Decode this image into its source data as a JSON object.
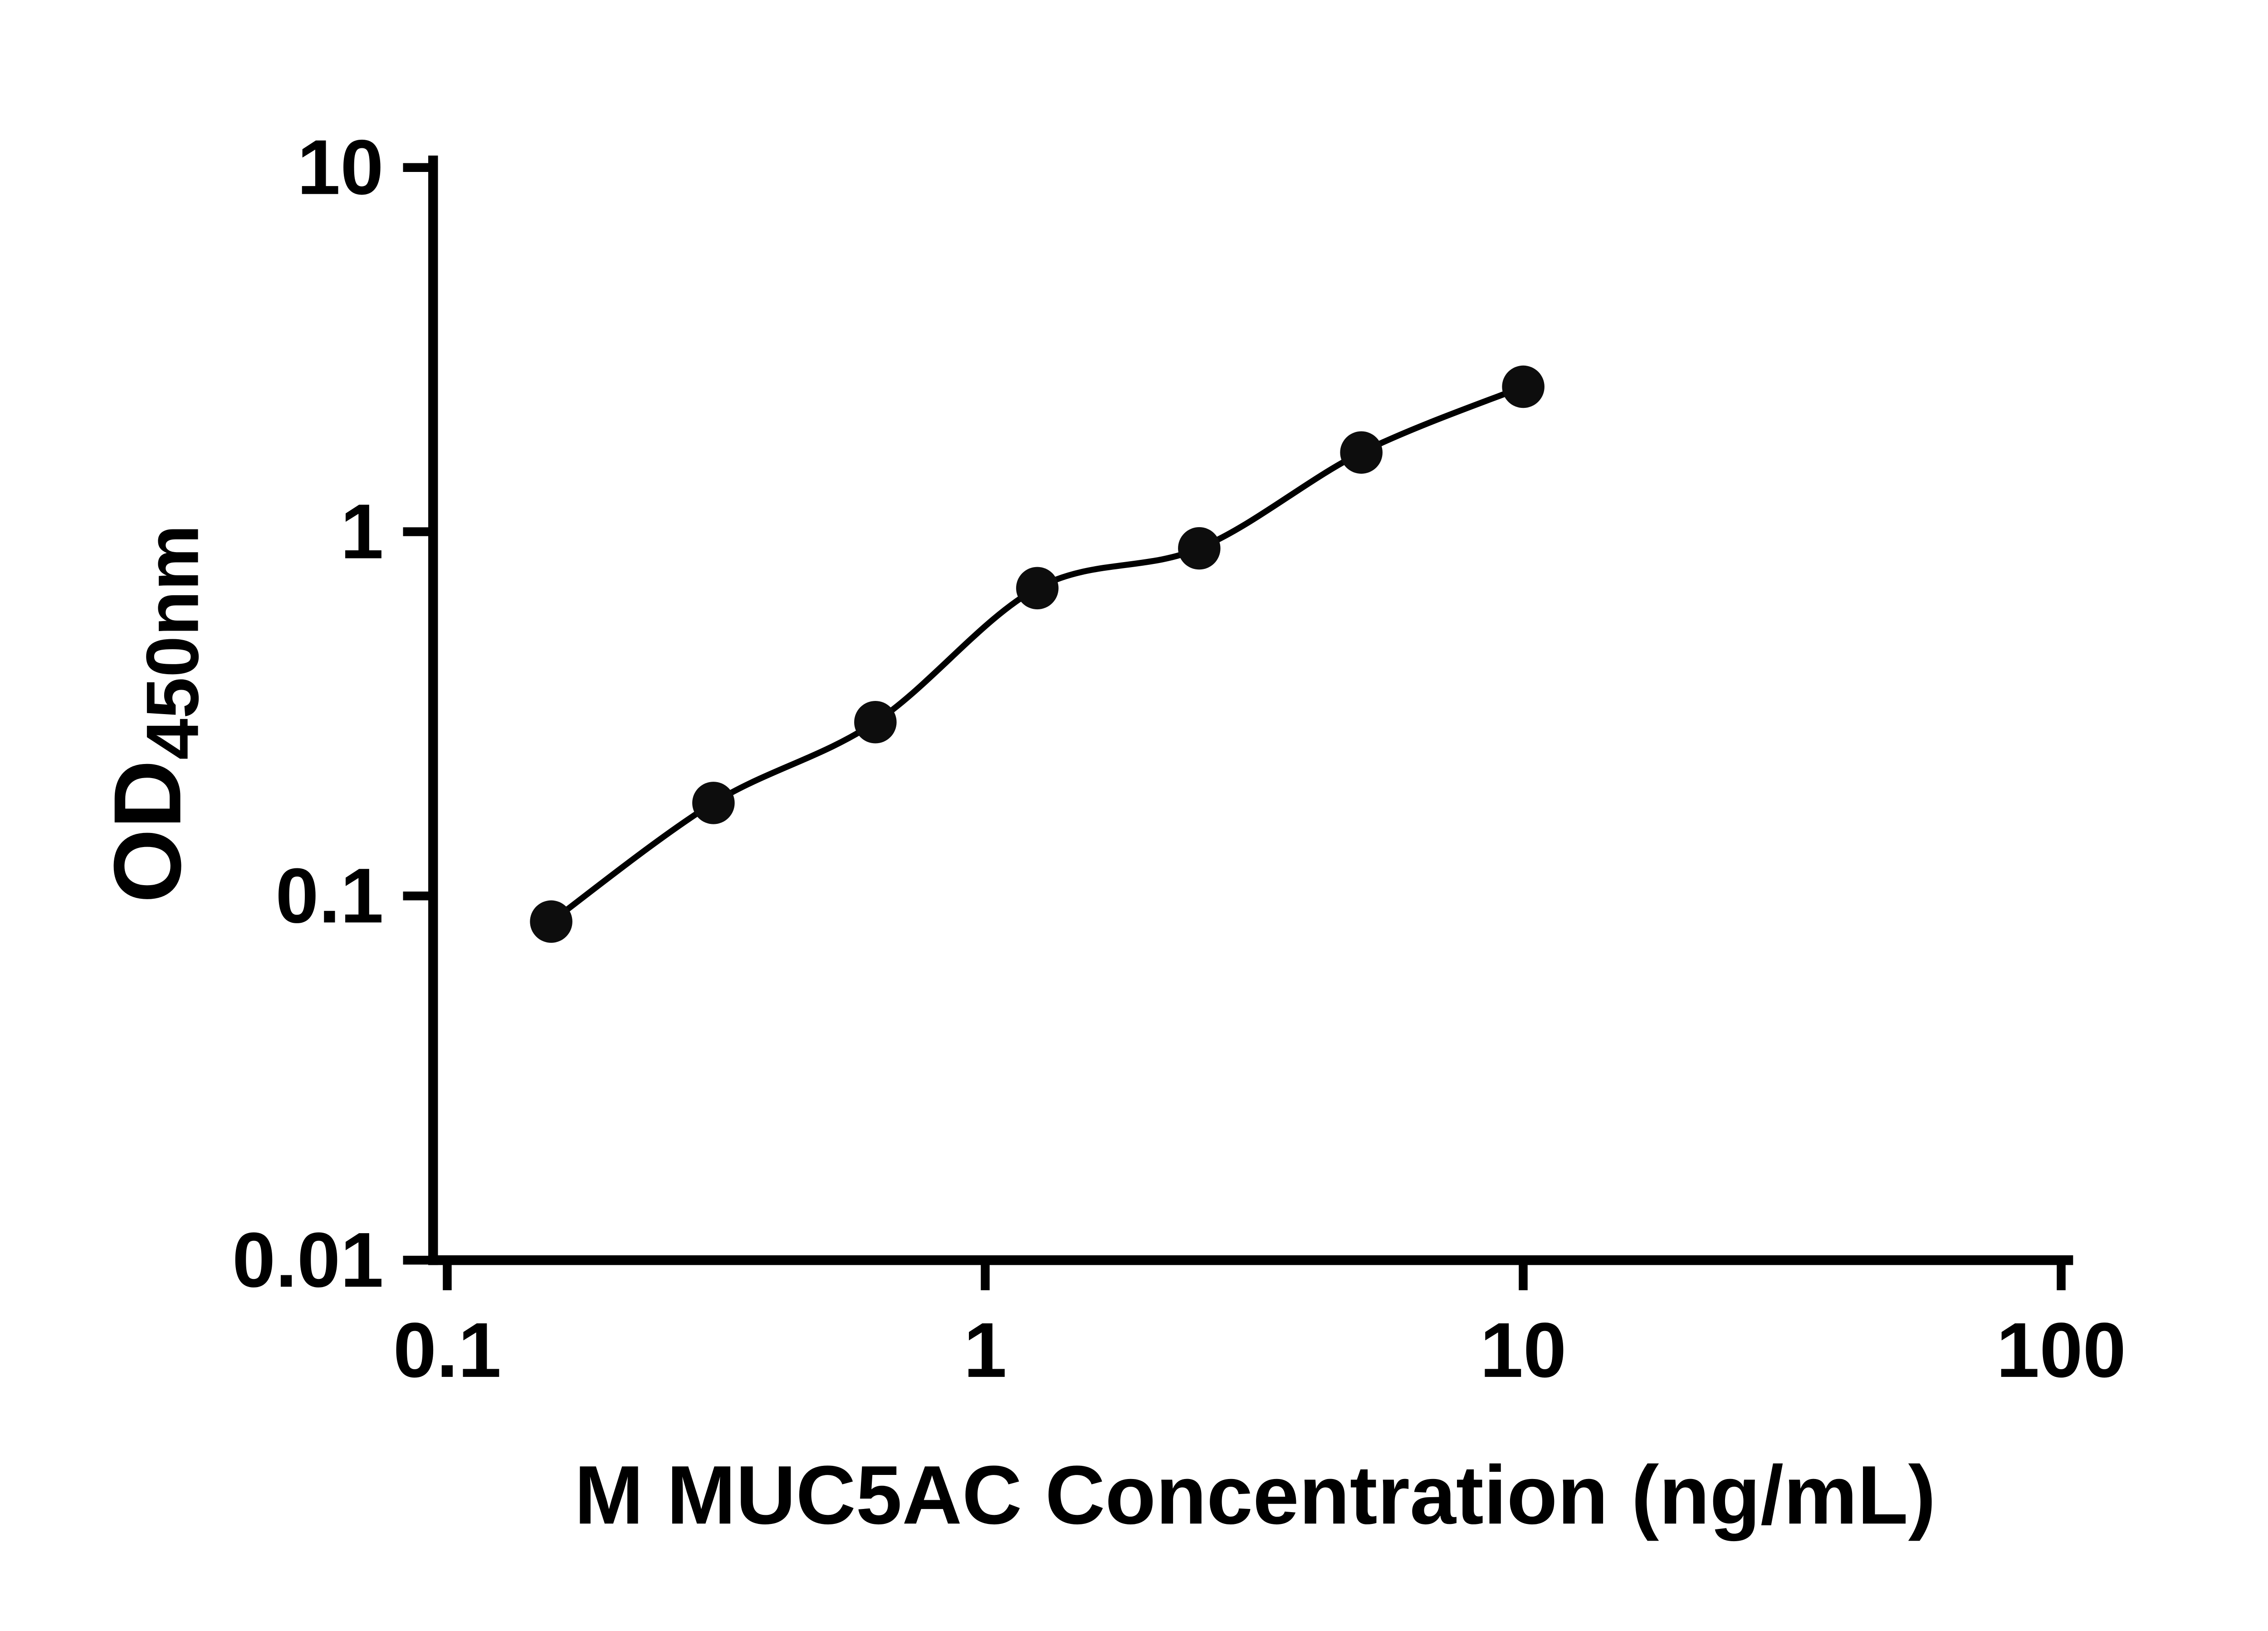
{
  "page": {
    "background": "#ffffff",
    "foreground": "#000000"
  },
  "chart_data": {
    "type": "scatter",
    "title": "",
    "xlabel": "M MUC5AC Concentration (ng/mL)",
    "ylabel": "OD",
    "ylabel_subscript": "450nm",
    "x_scale": "log",
    "y_scale": "log",
    "xlim": [
      0.1,
      100
    ],
    "ylim": [
      0.01,
      10
    ],
    "x_ticks": [
      0.1,
      1,
      10,
      100
    ],
    "x_tick_labels": [
      "0.1",
      "1",
      "10",
      "100"
    ],
    "y_ticks": [
      0.01,
      0.1,
      1,
      10
    ],
    "y_tick_labels": [
      "0.01",
      "0.1",
      "1",
      "10"
    ],
    "grid": false,
    "legend": "none",
    "marker_color": "#0d0d0d",
    "line_color": "#000000",
    "marker_radius": 12,
    "points": [
      {
        "x": 0.156,
        "y": 0.085
      },
      {
        "x": 0.3125,
        "y": 0.18
      },
      {
        "x": 0.625,
        "y": 0.3
      },
      {
        "x": 1.25,
        "y": 0.7
      },
      {
        "x": 2.5,
        "y": 0.9
      },
      {
        "x": 5,
        "y": 1.65
      },
      {
        "x": 10,
        "y": 2.5
      }
    ],
    "curve_style": "smooth fit through points"
  }
}
